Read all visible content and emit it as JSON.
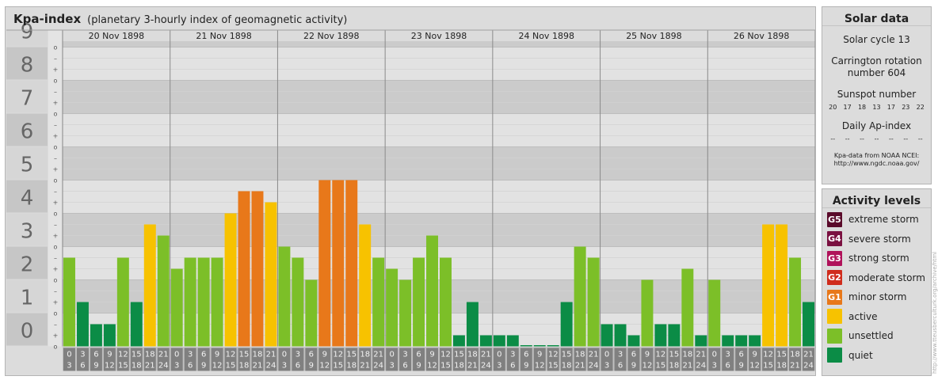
{
  "header": {
    "title": "Kpa-index",
    "subtitle": "(planetary 3-hourly index of geomagnetic activity)"
  },
  "chart_data": {
    "type": "bar",
    "y_ticks": [
      "0",
      "1",
      "2",
      "3",
      "4",
      "5",
      "6",
      "7",
      "8",
      "9"
    ],
    "ylim": [
      0,
      9
    ],
    "sub_ticks": [
      "o",
      "+",
      "–"
    ],
    "days": [
      "20 Nov 1898",
      "21 Nov 1898",
      "22 Nov 1898",
      "23 Nov 1898",
      "24 Nov 1898",
      "25 Nov 1898",
      "26 Nov 1898"
    ],
    "interval_start_labels": [
      "0",
      "3",
      "6",
      "9",
      "12",
      "15",
      "18",
      "21"
    ],
    "interval_end_labels": [
      "3",
      "6",
      "9",
      "12",
      "15",
      "18",
      "21",
      "24"
    ],
    "values": [
      2.667,
      1.333,
      0.667,
      0.667,
      2.667,
      1.333,
      3.667,
      3.333,
      2.333,
      2.667,
      2.667,
      2.667,
      4.0,
      4.667,
      4.667,
      4.333,
      3.0,
      2.667,
      2.0,
      5.0,
      5.0,
      5.0,
      3.667,
      2.667,
      2.333,
      2.0,
      2.667,
      3.333,
      2.667,
      0.333,
      1.333,
      0.333,
      0.333,
      0.333,
      0.0,
      0.0,
      0.0,
      1.333,
      3.0,
      2.667,
      0.667,
      0.667,
      0.333,
      2.0,
      0.667,
      0.667,
      2.333,
      0.333,
      2.0,
      0.333,
      0.333,
      0.333,
      3.667,
      3.667,
      2.667,
      1.333
    ],
    "grid": true
  },
  "solar_data": {
    "title": "Solar data",
    "cycle": "Solar cycle 13",
    "carrington_line1": "Carrington rotation",
    "carrington_line2": "number 604",
    "sunspot_label": "Sunspot number",
    "sunspot_values": [
      "20",
      "17",
      "18",
      "13",
      "17",
      "23",
      "22"
    ],
    "ap_label": "Daily Ap-index",
    "ap_values": [
      "--",
      "--",
      "--",
      "--",
      "--",
      "--",
      "--"
    ],
    "source_line1": "Kpa-data from NOAA NCEI:",
    "source_line2": "http://www.ngdc.noaa.gov/"
  },
  "activity_levels": {
    "title": "Activity levels",
    "items": [
      {
        "badge": "G5",
        "label": "extreme storm",
        "color": "#5a0a2a"
      },
      {
        "badge": "G4",
        "label": "severe storm",
        "color": "#7a1040"
      },
      {
        "badge": "G3",
        "label": "strong storm",
        "color": "#b0125a"
      },
      {
        "badge": "G2",
        "label": "moderate storm",
        "color": "#d02c1c"
      },
      {
        "badge": "G1",
        "label": "minor storm",
        "color": "#e8781a"
      },
      {
        "badge": "",
        "label": "active",
        "color": "#f7c200"
      },
      {
        "badge": "",
        "label": "unsettled",
        "color": "#7cbf28"
      },
      {
        "badge": "",
        "label": "quiet",
        "color": "#0b8c46"
      }
    ]
  },
  "colors": {
    "quiet": "#0b8c46",
    "unsettled": "#7cbf28",
    "active": "#f7c200",
    "minor": "#e8781a",
    "moderate": "#d02c1c"
  },
  "credit": "http://www.tteusberculturk.org/archive/html"
}
